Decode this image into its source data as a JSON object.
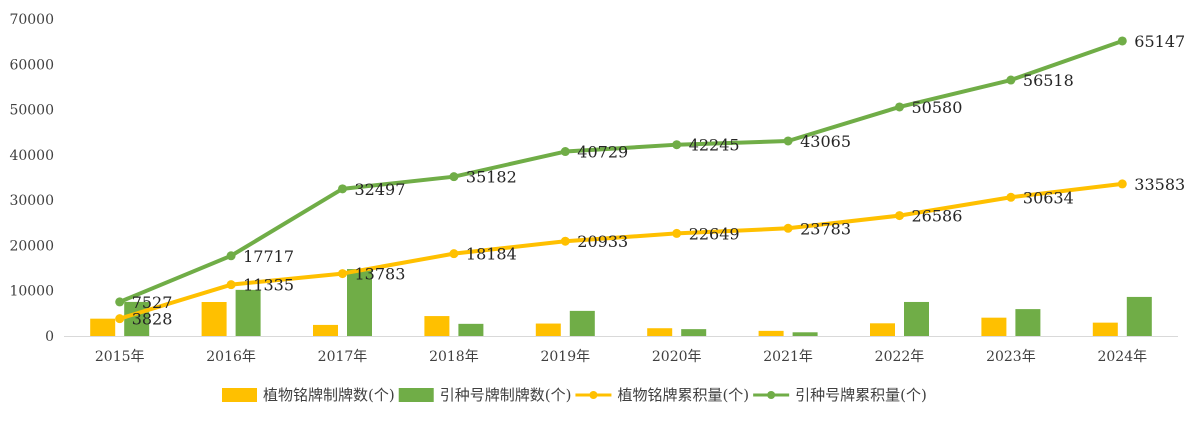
{
  "chart_data": {
    "type": "bar",
    "title": "",
    "xlabel": "",
    "ylabel": "",
    "ylim": [
      0,
      70000
    ],
    "yticks": [
      0,
      10000,
      20000,
      30000,
      40000,
      50000,
      60000,
      70000
    ],
    "grid": false,
    "legend": "bottom",
    "categories": [
      "2015年",
      "2016年",
      "2017年",
      "2018年",
      "2019年",
      "2020年",
      "2021年",
      "2022年",
      "2023年",
      "2024年"
    ],
    "series": [
      {
        "name": "植物铭牌制牌数(个)",
        "kind": "bar",
        "color": "#FFC000",
        "values": [
          3828,
          7507,
          2448,
          4401,
          2749,
          1716,
          1134,
          2803,
          4048,
          2949
        ]
      },
      {
        "name": "引种号牌制牌数(个)",
        "kind": "bar",
        "color": "#70AD47",
        "values": [
          7527,
          10190,
          14780,
          2685,
          5547,
          1516,
          820,
          7515,
          5938,
          8629
        ]
      },
      {
        "name": "植物铭牌累积量(个)",
        "kind": "line",
        "color": "#FFC000",
        "values": [
          3828,
          11335,
          13783,
          18184,
          20933,
          22649,
          23783,
          26586,
          30634,
          33583
        ],
        "labels": [
          "3828",
          "11335",
          "13783",
          "18184",
          "20933",
          "22649",
          "23783",
          "26586",
          "30634",
          "33583"
        ]
      },
      {
        "name": "引种号牌累积量(个)",
        "kind": "line",
        "color": "#70AD47",
        "values": [
          7527,
          17717,
          32497,
          35182,
          40729,
          42245,
          43065,
          50580,
          56518,
          65147
        ],
        "labels": [
          "7527",
          "17717",
          "32497",
          "35182",
          "40729",
          "42245",
          "43065",
          "50580",
          "56518",
          "65147"
        ]
      }
    ]
  }
}
